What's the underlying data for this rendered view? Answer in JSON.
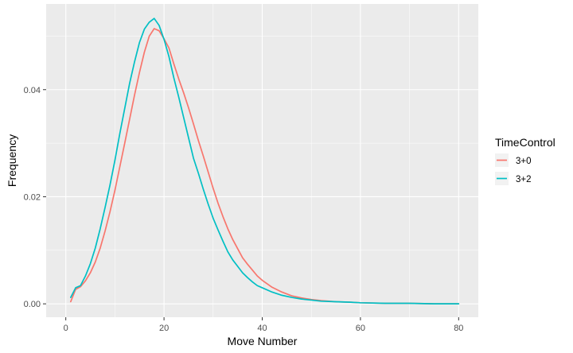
{
  "chart_data": {
    "type": "line",
    "xlabel": "Move Number",
    "ylabel": "Frequency",
    "xlim": [
      -4,
      84
    ],
    "ylim": [
      -0.0025,
      0.056
    ],
    "x_ticks": [
      0,
      20,
      40,
      60,
      80
    ],
    "x_tick_labels": [
      "0",
      "20",
      "40",
      "60",
      "80"
    ],
    "y_ticks": [
      0.0,
      0.02,
      0.04
    ],
    "y_tick_labels": [
      "0.00",
      "0.02",
      "0.04"
    ],
    "grid": true,
    "legend": {
      "title": "TimeControl",
      "placement": "right"
    },
    "series": [
      {
        "name": "3+0",
        "color": "#F8766D",
        "x": [
          1,
          2,
          3,
          4,
          5,
          6,
          7,
          8,
          9,
          10,
          11,
          12,
          13,
          14,
          15,
          16,
          17,
          18,
          19,
          20,
          21,
          22,
          23,
          24,
          25,
          26,
          27,
          28,
          29,
          30,
          31,
          32,
          33,
          34,
          35,
          36,
          37,
          38,
          39,
          40,
          42,
          44,
          46,
          48,
          50,
          52,
          55,
          58,
          60,
          65,
          70,
          75,
          80
        ],
        "values": [
          0.0004,
          0.0027,
          0.0032,
          0.0043,
          0.0058,
          0.0078,
          0.0104,
          0.0136,
          0.0172,
          0.0212,
          0.0256,
          0.03,
          0.0345,
          0.039,
          0.0432,
          0.047,
          0.05,
          0.0514,
          0.051,
          0.0495,
          0.0478,
          0.0448,
          0.042,
          0.0394,
          0.0366,
          0.0336,
          0.0305,
          0.0276,
          0.0246,
          0.0216,
          0.0188,
          0.0163,
          0.014,
          0.012,
          0.0103,
          0.0086,
          0.0074,
          0.0063,
          0.0052,
          0.0044,
          0.0031,
          0.0022,
          0.0015,
          0.0011,
          0.0008,
          0.0006,
          0.0004,
          0.0003,
          0.0002,
          0.0001,
          0.0001,
          0.0,
          0.0
        ]
      },
      {
        "name": "3+2",
        "color": "#00BFC4",
        "x": [
          1,
          2,
          3,
          4,
          5,
          6,
          7,
          8,
          9,
          10,
          11,
          12,
          13,
          14,
          15,
          16,
          17,
          18,
          19,
          20,
          21,
          22,
          23,
          24,
          25,
          26,
          27,
          28,
          29,
          30,
          31,
          32,
          33,
          34,
          35,
          36,
          37,
          38,
          39,
          40,
          42,
          44,
          46,
          48,
          50,
          52,
          55,
          58,
          60,
          65,
          70,
          75,
          80
        ],
        "values": [
          0.0012,
          0.003,
          0.0034,
          0.0052,
          0.0075,
          0.0104,
          0.014,
          0.018,
          0.0222,
          0.0268,
          0.0318,
          0.0365,
          0.0412,
          0.0452,
          0.0488,
          0.0513,
          0.0526,
          0.0533,
          0.052,
          0.0494,
          0.0462,
          0.0422,
          0.0386,
          0.0348,
          0.031,
          0.0272,
          0.0244,
          0.0214,
          0.0186,
          0.016,
          0.0138,
          0.0117,
          0.0097,
          0.0082,
          0.007,
          0.0058,
          0.0049,
          0.0041,
          0.0034,
          0.003,
          0.0022,
          0.0016,
          0.0012,
          0.0009,
          0.0007,
          0.0005,
          0.0004,
          0.0003,
          0.0002,
          0.0001,
          0.0001,
          0.0,
          0.0
        ]
      }
    ]
  },
  "colors": {
    "panel_background": "#EBEBEB",
    "grid_major": "#FFFFFF",
    "tick_text": "#4D4D4D"
  }
}
